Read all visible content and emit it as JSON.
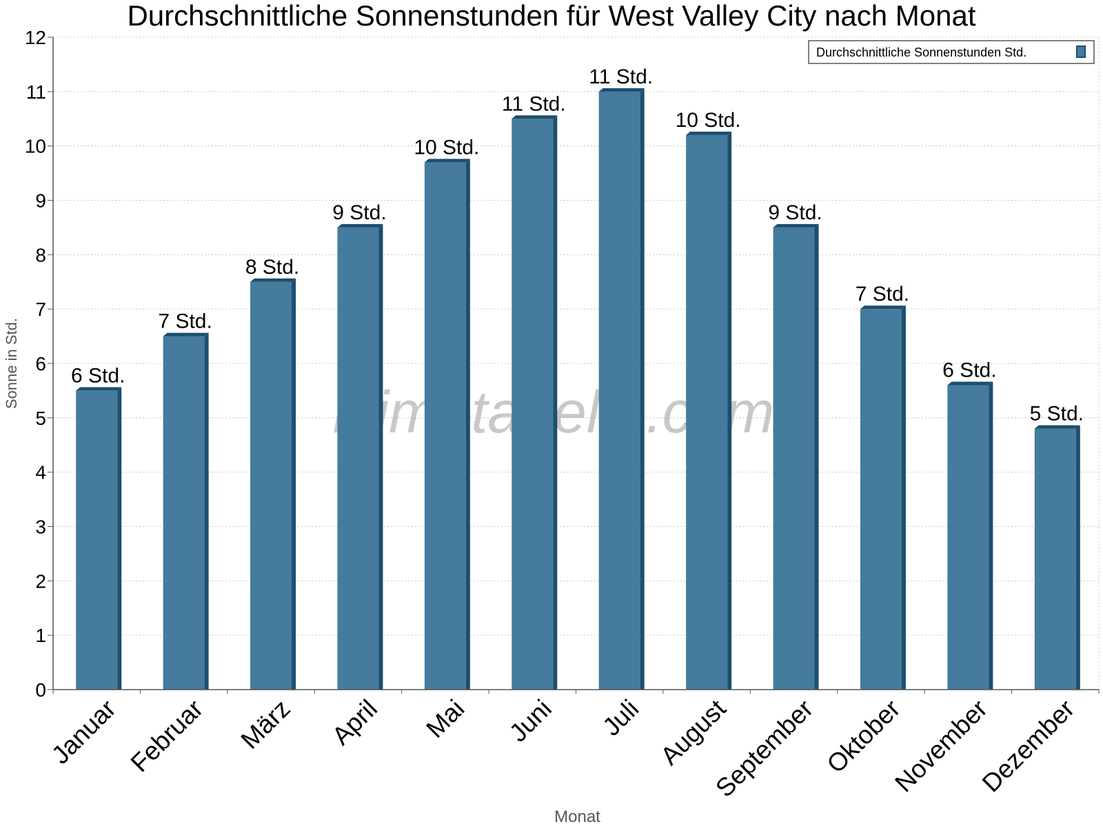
{
  "chart_data": {
    "type": "bar",
    "title": "Durchschnittliche Sonnenstunden für West Valley City nach Monat",
    "xlabel": "Monat",
    "ylabel": "Sonne in Std.",
    "ylim": [
      0,
      12
    ],
    "yticks": [
      "0",
      "1",
      "2",
      "3",
      "4",
      "5",
      "6",
      "7",
      "8",
      "9",
      "10",
      "11",
      "12"
    ],
    "grid": true,
    "legend": {
      "position": "top-right",
      "label": "Durchschnittliche Sonnenstunden Std."
    },
    "categories": [
      "Januar",
      "Februar",
      "März",
      "April",
      "Mai",
      "Juni",
      "Juli",
      "August",
      "September",
      "Oktober",
      "November",
      "Dezember"
    ],
    "series": [
      {
        "name": "Durchschnittliche Sonnenstunden Std.",
        "values": [
          5.5,
          6.5,
          7.5,
          8.5,
          9.7,
          10.5,
          11.0,
          10.2,
          8.5,
          7.0,
          5.6,
          4.8
        ],
        "labels": [
          "6 Std.",
          "7 Std.",
          "8 Std.",
          "9 Std.",
          "10 Std.",
          "11 Std.",
          "11 Std.",
          "10 Std.",
          "9 Std.",
          "7 Std.",
          "6 Std.",
          "5 Std."
        ]
      }
    ],
    "colors": {
      "bar_fill": "#457b9d",
      "bar_side": "#1d4e6e",
      "bar_top": "#1d4e6e",
      "axis": "#555555",
      "grid": "#c8c8c8",
      "label": "#000000",
      "axis_title": "#555555"
    },
    "watermark": "klimatabelle.com"
  }
}
